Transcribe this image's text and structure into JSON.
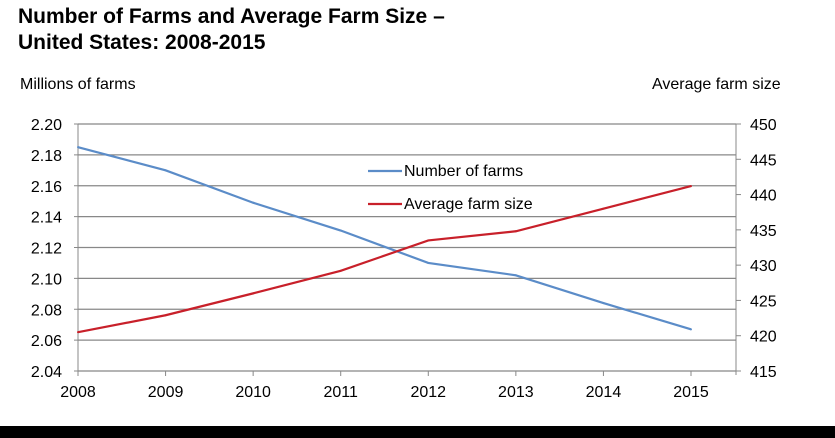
{
  "chart_data": {
    "type": "line",
    "title_line1": "Number of Farms and Average Farm Size –",
    "title_line2": "United States: 2008-2015",
    "ylabel_left": "Millions of farms",
    "ylabel_right": "Average farm size",
    "x": [
      "2008",
      "2009",
      "2010",
      "2011",
      "2012",
      "2013",
      "2014",
      "2015"
    ],
    "ylim_left": [
      2.04,
      2.2
    ],
    "yticks_left": [
      "2.20",
      "2.18",
      "2.16",
      "2.14",
      "2.12",
      "2.10",
      "2.08",
      "2.06",
      "2.04"
    ],
    "ylim_right": [
      415,
      450
    ],
    "yticks_right": [
      "450",
      "445",
      "440",
      "435",
      "430",
      "425",
      "420",
      "415"
    ],
    "grid": true,
    "legend_placement": "top-center",
    "series": [
      {
        "name": "Number of farms",
        "axis": "left",
        "color": "#5b8cc8",
        "values": [
          2.185,
          2.17,
          2.149,
          2.131,
          2.11,
          2.102,
          2.084,
          2.067
        ]
      },
      {
        "name": "Average farm size",
        "axis": "right",
        "color": "#c8202a",
        "values": [
          420.5,
          422.9,
          426.0,
          429.2,
          433.5,
          434.8,
          438.0,
          441.2
        ]
      }
    ]
  }
}
